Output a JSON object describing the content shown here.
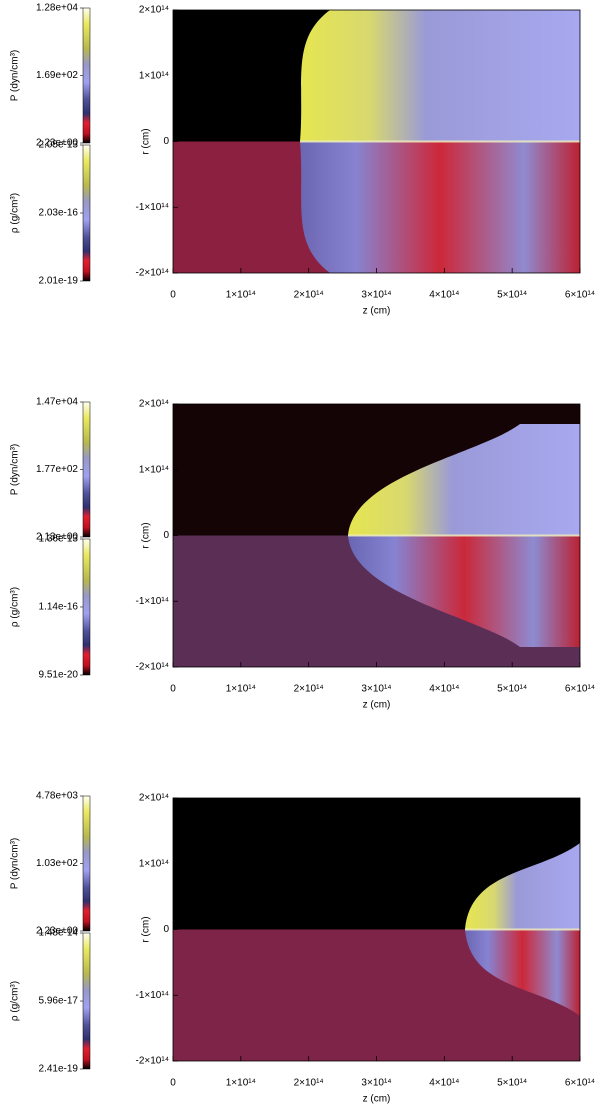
{
  "chart_data": [
    {
      "type": "image",
      "xlabel": "z (cm)",
      "ylabel": "r (cm)",
      "xlim": [
        0,
        600000000000000.0
      ],
      "ylim": [
        -200000000000000.0,
        200000000000000.0
      ],
      "xticks": [
        0,
        {
          "value": 100000000000000.0,
          "label": "1×10¹⁴"
        },
        {
          "value": 200000000000000.0,
          "label": "2×10¹⁴"
        },
        {
          "value": 300000000000000.0,
          "label": "3×10¹⁴"
        },
        {
          "value": 400000000000000.0,
          "label": "4×10¹⁴"
        },
        {
          "value": 500000000000000.0,
          "label": "5×10¹⁴"
        },
        {
          "value": 600000000000000.0,
          "label": "6×10¹⁴"
        }
      ],
      "yticks": [
        {
          "value": -200000000000000.0,
          "label": "-2×10¹⁴"
        },
        {
          "value": -100000000000000.0,
          "label": "-1×10¹⁴"
        },
        0,
        {
          "value": 100000000000000.0,
          "label": "1×10¹⁴"
        },
        {
          "value": 200000000000000.0,
          "label": "2×10¹⁴"
        }
      ],
      "colorbars": [
        {
          "label": "P (dyn/cm³)",
          "log": true,
          "lim": [
            2.23,
            12800
          ],
          "ticks": [
            {
              "value": 2.23,
              "label": "2.23e+00"
            },
            {
              "value": 169,
              "label": "1.69e+02"
            },
            {
              "value": 12800,
              "label": "1.28e+04"
            }
          ]
        },
        {
          "label": "ρ (g/cm³)",
          "log": true,
          "lim": [
            2.01e-19,
            2.05e-13
          ],
          "ticks": [
            {
              "value": 2.01e-19,
              "label": "2.01e-19"
            },
            {
              "value": 2.03e-16,
              "label": "2.03e-16"
            },
            {
              "value": 2.05e-13,
              "label": "2.05e-13"
            }
          ]
        }
      ]
    },
    {
      "type": "image",
      "xlabel": "z (cm)",
      "ylabel": "r (cm)",
      "xlim": [
        0,
        600000000000000.0
      ],
      "ylim": [
        -200000000000000.0,
        200000000000000.0
      ],
      "xticks": [
        0,
        {
          "value": 100000000000000.0,
          "label": "1×10¹⁴"
        },
        {
          "value": 200000000000000.0,
          "label": "2×10¹⁴"
        },
        {
          "value": 300000000000000.0,
          "label": "3×10¹⁴"
        },
        {
          "value": 400000000000000.0,
          "label": "4×10¹⁴"
        },
        {
          "value": 500000000000000.0,
          "label": "5×10¹⁴"
        },
        {
          "value": 600000000000000.0,
          "label": "6×10¹⁴"
        }
      ],
      "yticks": [
        {
          "value": -200000000000000.0,
          "label": "-2×10¹⁴"
        },
        {
          "value": -100000000000000.0,
          "label": "-1×10¹⁴"
        },
        0,
        {
          "value": 100000000000000.0,
          "label": "1×10¹⁴"
        },
        {
          "value": 200000000000000.0,
          "label": "2×10¹⁴"
        }
      ],
      "colorbars": [
        {
          "label": "P (dyn/cm³)",
          "log": true,
          "lim": [
            2.13,
            14700
          ],
          "ticks": [
            {
              "value": 2.13,
              "label": "2.13e+00"
            },
            {
              "value": 177,
              "label": "1.77e+02"
            },
            {
              "value": 14700,
              "label": "1.47e+04"
            }
          ]
        },
        {
          "label": "ρ (g/cm³)",
          "log": true,
          "lim": [
            9.51e-20,
            1.36e-13
          ],
          "ticks": [
            {
              "value": 9.51e-20,
              "label": "9.51e-20"
            },
            {
              "value": 1.14e-16,
              "label": "1.14e-16"
            },
            {
              "value": 1.36e-13,
              "label": "1.36e-13"
            }
          ]
        }
      ]
    },
    {
      "type": "image",
      "xlabel": "z (cm)",
      "ylabel": "r (cm)",
      "xlim": [
        0,
        600000000000000.0
      ],
      "ylim": [
        -200000000000000.0,
        200000000000000.0
      ],
      "xticks": [
        0,
        {
          "value": 100000000000000.0,
          "label": "1×10¹⁴"
        },
        {
          "value": 200000000000000.0,
          "label": "2×10¹⁴"
        },
        {
          "value": 300000000000000.0,
          "label": "3×10¹⁴"
        },
        {
          "value": 400000000000000.0,
          "label": "4×10¹⁴"
        },
        {
          "value": 500000000000000.0,
          "label": "5×10¹⁴"
        },
        {
          "value": 600000000000000.0,
          "label": "6×10¹⁴"
        }
      ],
      "yticks": [
        {
          "value": -200000000000000.0,
          "label": "-2×10¹⁴"
        },
        {
          "value": -100000000000000.0,
          "label": "-1×10¹⁴"
        },
        0,
        {
          "value": 100000000000000.0,
          "label": "1×10¹⁴"
        },
        {
          "value": 200000000000000.0,
          "label": "2×10¹⁴"
        }
      ],
      "colorbars": [
        {
          "label": "P (dyn/cm³)",
          "log": true,
          "lim": [
            2.23,
            4780
          ],
          "ticks": [
            {
              "value": 2.23,
              "label": "2.23e+00"
            },
            {
              "value": 103,
              "label": "1.03e+02"
            },
            {
              "value": 4780,
              "label": "4.78e+03"
            }
          ]
        },
        {
          "label": "ρ (g/cm³)",
          "log": true,
          "lim": [
            2.41e-19,
            1.48e-14
          ],
          "ticks": [
            {
              "value": 2.41e-19,
              "label": "2.41e-19"
            },
            {
              "value": 5.96e-17,
              "label": "5.96e-17"
            },
            {
              "value": 1.48e-14,
              "label": "1.48e-14"
            }
          ]
        }
      ]
    }
  ]
}
